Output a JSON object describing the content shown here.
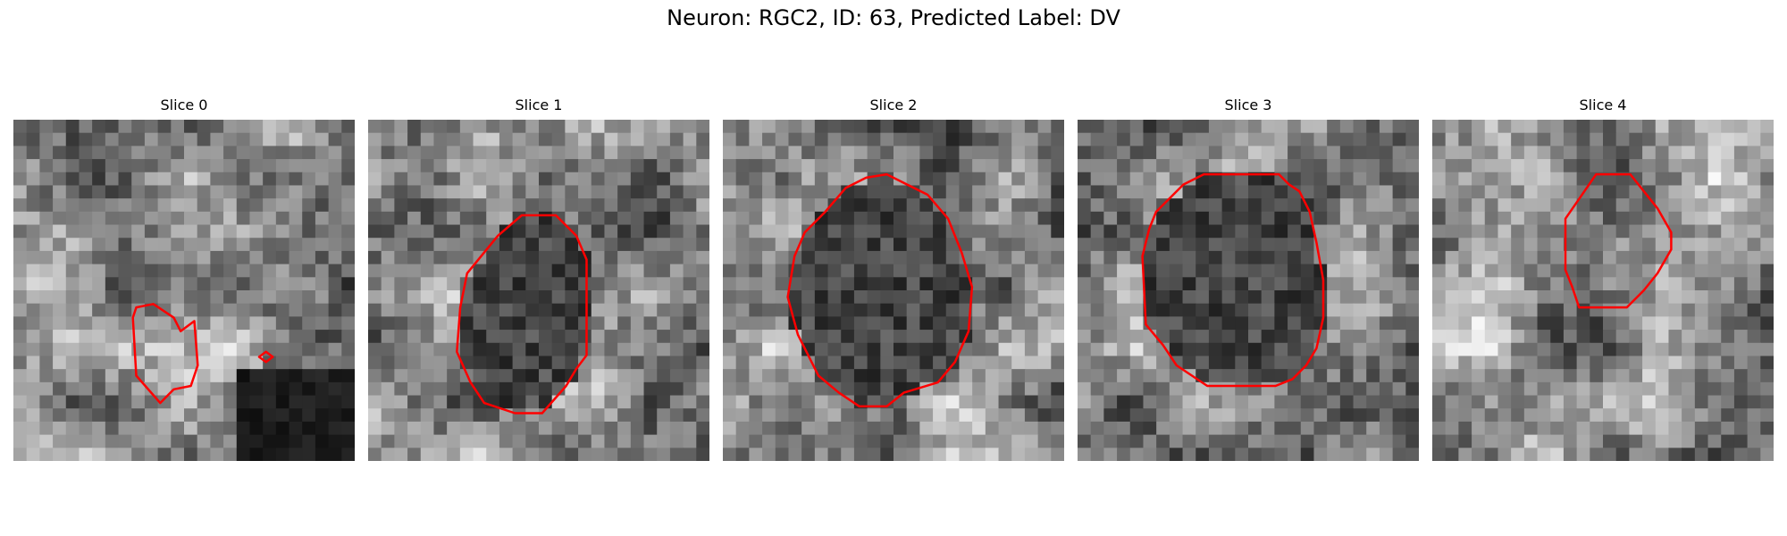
{
  "figure": {
    "title": "Neuron: RGC2, ID: 63, Predicted Label: DV"
  },
  "colors": {
    "background": "#ffffff",
    "contour": "#ff0000",
    "text": "#000000"
  },
  "panels": [
    {
      "title": "Slice 0",
      "seed": 11,
      "contours": [
        [
          [
            0.36,
            0.55
          ],
          [
            0.41,
            0.54
          ],
          [
            0.47,
            0.58
          ],
          [
            0.49,
            0.62
          ],
          [
            0.53,
            0.59
          ],
          [
            0.54,
            0.72
          ],
          [
            0.52,
            0.78
          ],
          [
            0.47,
            0.79
          ],
          [
            0.43,
            0.83
          ],
          [
            0.36,
            0.75
          ],
          [
            0.35,
            0.58
          ]
        ],
        [
          [
            0.74,
            0.68
          ],
          [
            0.76,
            0.695
          ],
          [
            0.74,
            0.71
          ],
          [
            0.72,
            0.695
          ]
        ]
      ]
    },
    {
      "title": "Slice 1",
      "seed": 23,
      "contours": [
        [
          [
            0.38,
            0.34
          ],
          [
            0.45,
            0.28
          ],
          [
            0.55,
            0.28
          ],
          [
            0.61,
            0.34
          ],
          [
            0.64,
            0.41
          ],
          [
            0.64,
            0.69
          ],
          [
            0.61,
            0.73
          ],
          [
            0.58,
            0.78
          ],
          [
            0.51,
            0.86
          ],
          [
            0.43,
            0.86
          ],
          [
            0.34,
            0.83
          ],
          [
            0.3,
            0.77
          ],
          [
            0.26,
            0.68
          ],
          [
            0.27,
            0.55
          ],
          [
            0.29,
            0.45
          ]
        ]
      ]
    },
    {
      "title": "Slice 2",
      "seed": 37,
      "contours": [
        [
          [
            0.3,
            0.27
          ],
          [
            0.36,
            0.2
          ],
          [
            0.42,
            0.17
          ],
          [
            0.48,
            0.16
          ],
          [
            0.54,
            0.19
          ],
          [
            0.6,
            0.22
          ],
          [
            0.66,
            0.29
          ],
          [
            0.7,
            0.39
          ],
          [
            0.73,
            0.49
          ],
          [
            0.72,
            0.62
          ],
          [
            0.68,
            0.71
          ],
          [
            0.63,
            0.77
          ],
          [
            0.53,
            0.8
          ],
          [
            0.48,
            0.84
          ],
          [
            0.4,
            0.84
          ],
          [
            0.34,
            0.8
          ],
          [
            0.28,
            0.75
          ],
          [
            0.22,
            0.63
          ],
          [
            0.19,
            0.52
          ],
          [
            0.21,
            0.4
          ],
          [
            0.24,
            0.33
          ]
        ]
      ]
    },
    {
      "title": "Slice 3",
      "seed": 53,
      "contours": [
        [
          [
            0.23,
            0.27
          ],
          [
            0.31,
            0.19
          ],
          [
            0.37,
            0.16
          ],
          [
            0.59,
            0.16
          ],
          [
            0.62,
            0.19
          ],
          [
            0.65,
            0.21
          ],
          [
            0.68,
            0.27
          ],
          [
            0.7,
            0.36
          ],
          [
            0.72,
            0.47
          ],
          [
            0.72,
            0.58
          ],
          [
            0.7,
            0.67
          ],
          [
            0.67,
            0.72
          ],
          [
            0.63,
            0.76
          ],
          [
            0.58,
            0.78
          ],
          [
            0.56,
            0.78
          ],
          [
            0.5,
            0.78
          ],
          [
            0.38,
            0.78
          ],
          [
            0.29,
            0.72
          ],
          [
            0.25,
            0.66
          ],
          [
            0.2,
            0.6
          ],
          [
            0.19,
            0.4
          ],
          [
            0.21,
            0.32
          ]
        ]
      ]
    },
    {
      "title": "Slice 4",
      "seed": 71,
      "contours": [
        [
          [
            0.39,
            0.29
          ],
          [
            0.48,
            0.16
          ],
          [
            0.58,
            0.16
          ],
          [
            0.66,
            0.26
          ],
          [
            0.7,
            0.33
          ],
          [
            0.7,
            0.38
          ],
          [
            0.66,
            0.45
          ],
          [
            0.62,
            0.5
          ],
          [
            0.57,
            0.55
          ],
          [
            0.43,
            0.55
          ],
          [
            0.41,
            0.49
          ],
          [
            0.39,
            0.44
          ],
          [
            0.39,
            0.32
          ]
        ]
      ]
    }
  ]
}
